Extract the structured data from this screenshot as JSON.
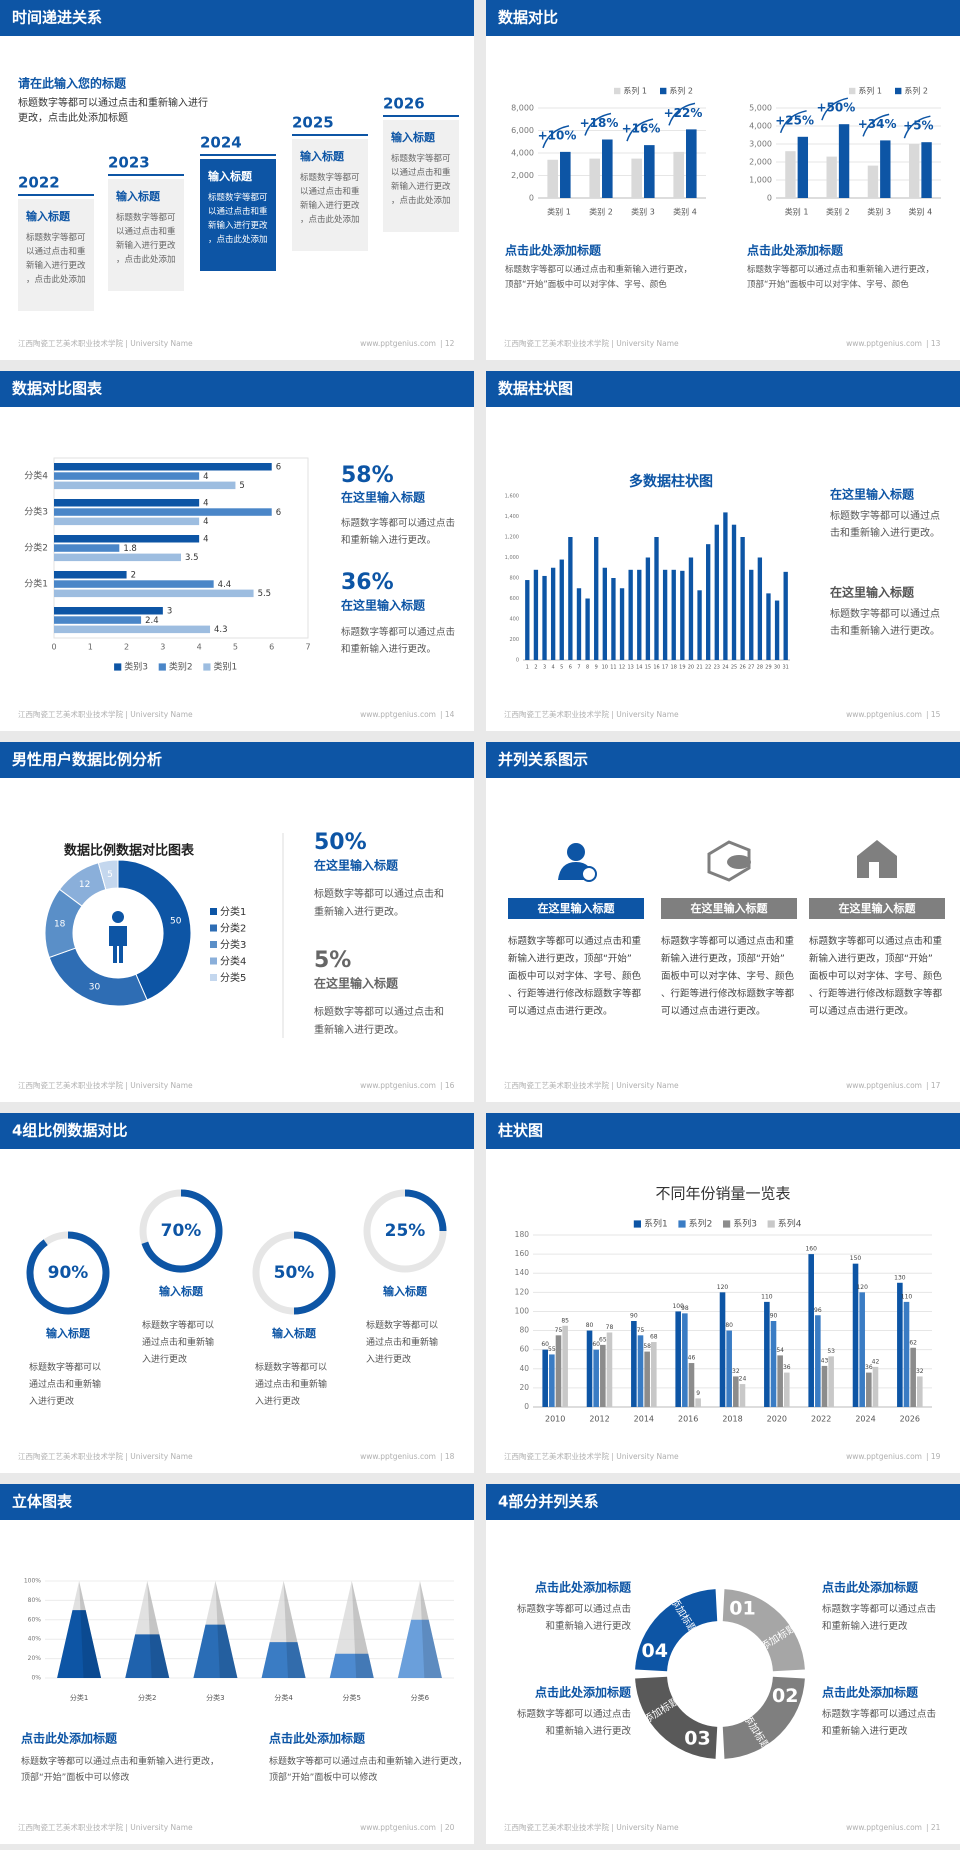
{
  "footer": {
    "school": "江西陶瓷工艺美术职业技术学院 | University Name",
    "site": "www.pptgenius.com"
  },
  "slides": [
    {
      "title": "时间递进关系",
      "page": "| 12",
      "heading": "请在此输入您的标题",
      "intro": "标题数字等都可以通过点击和重新输入进行更改，点击此处添加标题",
      "steps": [
        {
          "year": "2022",
          "title": "输入标题",
          "text": "标题数字等都可以通过点击和重新输入进行更改，点击此处添加",
          "fill": "#f0f0f0"
        },
        {
          "year": "2023",
          "title": "输入标题",
          "text": "标题数字等都可以通过点击和重新输入进行更改，点击此处添加",
          "fill": "#f0f0f0"
        },
        {
          "year": "2024",
          "title": "输入标题",
          "text": "标题数字等都可以通过点击和重新输入进行更改，点击此处添加",
          "fill": "#0d55a5"
        },
        {
          "year": "2025",
          "title": "输入标题",
          "text": "标题数字等都可以通过点击和重新输入进行更改，点击此处添加",
          "fill": "#f0f0f0"
        },
        {
          "year": "2026",
          "title": "输入标题",
          "text": "标题数字等都可以通过点击和重新输入进行更改，点击此处添加",
          "fill": "#f0f0f0"
        }
      ]
    },
    {
      "title": "数据对比",
      "page": "| 13",
      "charts": [
        {
          "type": "bar",
          "categories": [
            "类别 1",
            "类别 2",
            "类别 3",
            "类别 4"
          ],
          "series": [
            {
              "name": "系列 1",
              "color": "#d9d9d9",
              "values": [
                3400,
                3500,
                3500,
                4100
              ]
            },
            {
              "name": "系列 2",
              "color": "#0d55a5",
              "values": [
                4100,
                5200,
                4700,
                6100
              ]
            }
          ],
          "ylim": [
            0,
            8000
          ],
          "yticks": [
            0,
            {
              "value": 2000,
              "label": "2,000"
            },
            {
              "value": 4000,
              "label": "4,000"
            },
            {
              "value": 6000,
              "label": "6,000"
            },
            {
              "value": 8000,
              "label": "8,000"
            }
          ],
          "grid": true,
          "annotations": [
            "+10%",
            "+18%",
            "+16%",
            "+22%"
          ]
        },
        {
          "type": "bar",
          "categories": [
            "类别 1",
            "类别 2",
            "类别 3",
            "类别 4"
          ],
          "series": [
            {
              "name": "系列 1",
              "color": "#d9d9d9",
              "values": [
                2600,
                2300,
                1800,
                3000
              ]
            },
            {
              "name": "系列 2",
              "color": "#0d55a5",
              "values": [
                3400,
                4100,
                3200,
                3100
              ]
            }
          ],
          "ylim": [
            0,
            5000
          ],
          "yticks": [
            0,
            {
              "value": 1000,
              "label": "1,000"
            },
            {
              "value": 2000,
              "label": "2,000"
            },
            {
              "value": 3000,
              "label": "3,000"
            },
            {
              "value": 4000,
              "label": "4,000"
            },
            {
              "value": 5000,
              "label": "5,000"
            }
          ],
          "grid": true,
          "annotations": [
            "+25%",
            "+50%",
            "+34%",
            "+5%"
          ]
        }
      ],
      "blocks": [
        {
          "title": "点击此处添加标题",
          "text": "标题数字等都可以通过点击和重新输入进行更改，顶部“开始”面板中可以对字体、字号、颜色"
        },
        {
          "title": "点击此处添加标题",
          "text": "标题数字等都可以通过点击和重新输入进行更改，顶部“开始”面板中可以对字体、字号、颜色"
        }
      ]
    },
    {
      "title": "数据对比图表",
      "page": "| 14",
      "chart": {
        "type": "hbar",
        "categories": [
          null,
          "分类1",
          "分类2",
          "分类3",
          "分类4"
        ],
        "series": [
          {
            "name": "类别3",
            "color": "#0d55a5",
            "values": [
              3,
              2,
              4,
              4,
              6
            ]
          },
          {
            "name": "类别2",
            "color": "#4a86c8",
            "values": [
              2.4,
              4.4,
              1.8,
              6,
              4
            ]
          },
          {
            "name": "类别1",
            "color": "#9dbde0",
            "values": [
              4.3,
              5.5,
              3.5,
              4,
              5
            ]
          }
        ],
        "xlim": [
          0,
          7
        ],
        "xticks": [
          0,
          1,
          2,
          3,
          4,
          5,
          6,
          7
        ]
      },
      "stats": [
        {
          "value": "58%",
          "title": "在这里输入标题",
          "text": "标题数字等都可以通过点击和重新输入进行更改。"
        },
        {
          "value": "36%",
          "title": "在这里输入标题",
          "text": "标题数字等都可以通过点击和重新输入进行更改。"
        }
      ]
    },
    {
      "title": "数据柱状图",
      "page": "| 15",
      "chart": {
        "type": "bar",
        "title": "多数据柱状图",
        "categories": [
          "1",
          "2",
          "3",
          "4",
          "5",
          "6",
          "7",
          "8",
          "9",
          "10",
          "11",
          "12",
          "13",
          "14",
          "15",
          "16",
          "17",
          "18",
          "19",
          "20",
          "21",
          "22",
          "23",
          "24",
          "25",
          "26",
          "27",
          "28",
          "29",
          "30",
          "31"
        ],
        "values": [
          780,
          880,
          820,
          900,
          980,
          1200,
          700,
          600,
          1200,
          900,
          800,
          700,
          880,
          880,
          1000,
          1200,
          880,
          880,
          870,
          1000,
          680,
          1130,
          1320,
          1440,
          1320,
          1200,
          880,
          1000,
          650,
          580,
          860
        ],
        "color": "#0d55a5",
        "ylim": [
          0,
          1600
        ],
        "yticks": [
          0,
          200,
          400,
          600,
          800,
          {
            "value": 1000,
            "label": "1,000"
          },
          {
            "value": 1200,
            "label": "1,200"
          },
          {
            "value": 1400,
            "label": "1,400"
          },
          {
            "value": 1600,
            "label": "1,600"
          }
        ],
        "grid": false
      },
      "notes": [
        {
          "title": "在这里输入标题",
          "text": "标题数字等都可以通过点击和重新输入进行更改。"
        },
        {
          "title": "在这里输入标题",
          "text": "标题数字等都可以通过点击和重新输入进行更改。"
        }
      ]
    },
    {
      "title": "男性用户数据比例分析",
      "page": "| 16",
      "chart": {
        "type": "donut",
        "title": "数据比例数据对比图表",
        "categories": [
          "分类1",
          "分类2",
          "分类3",
          "分类4",
          "分类5"
        ],
        "values": [
          50,
          30,
          18,
          12,
          5
        ],
        "colors": [
          "#0d55a5",
          "#2e6db4",
          "#5a8fc8",
          "#8aafda",
          "#c4d7ee"
        ]
      },
      "stats": [
        {
          "value": "50%",
          "title": "在这里输入标题",
          "text": "标题数字等都可以通过点击和重新输入进行更改。"
        },
        {
          "value": "5%",
          "title": "在这里输入标题",
          "text": "标题数字等都可以通过点击和重新输入进行更改。"
        }
      ]
    },
    {
      "title": "并列关系图示",
      "page": "| 17",
      "columns": [
        {
          "label": "在这里输入标题",
          "color": "#0d55a5",
          "text": "标题数字等都可以通过点击和重新输入进行更改，顶部“开始”面板中可以对字体、字号、颜色、行距等进行修改标题数字等都可以通过点击进行更改。"
        },
        {
          "label": "在这里输入标题",
          "color": "#7f7f7f",
          "text": "标题数字等都可以通过点击和重新输入进行更改，顶部“开始”面板中可以对字体、字号、颜色、行距等进行修改标题数字等都可以通过点击进行更改。"
        },
        {
          "label": "在这里输入标题",
          "color": "#7f7f7f",
          "text": "标题数字等都可以通过点击和重新输入进行更改，顶部“开始”面板中可以对字体、字号、颜色、行距等进行修改标题数字等都可以通过点击进行更改。"
        }
      ]
    },
    {
      "title": "4组比例数据对比",
      "page": "| 18",
      "chart": {
        "type": "ring",
        "values": [
          90,
          70,
          50,
          25
        ],
        "value_labels": [
          "90%",
          "70%",
          "50%",
          "25%"
        ],
        "color": "#0d55a5",
        "track": "#e6e6e6",
        "ylim": [
          0,
          100
        ]
      },
      "items": [
        {
          "title": "输入标题",
          "text": "标题数字等都可以通过点击和重新输入进行更改"
        },
        {
          "title": "输入标题",
          "text": "标题数字等都可以通过点击和重新输入进行更改"
        },
        {
          "title": "输入标题",
          "text": "标题数字等都可以通过点击和重新输入进行更改"
        },
        {
          "title": "输入标题",
          "text": "标题数字等都可以通过点击和重新输入进行更改"
        }
      ]
    },
    {
      "title": "柱状图",
      "page": "| 19",
      "chart": {
        "type": "bar",
        "title": "不同年份销量一览表",
        "categories": [
          "2010",
          "2012",
          "2014",
          "2016",
          "2018",
          "2020",
          "2022",
          "2024",
          "2026"
        ],
        "series": [
          {
            "name": "系列1",
            "color": "#0d55a5",
            "values": [
              60,
              80,
              90,
              100,
              120,
              110,
              160,
              150,
              130
            ]
          },
          {
            "name": "系列2",
            "color": "#3a7cc4",
            "values": [
              55,
              60,
              75,
              98,
              80,
              90,
              96,
              120,
              110
            ]
          },
          {
            "name": "系列3",
            "color": "#8c8c8c",
            "values": [
              75,
              65,
              58,
              46,
              32,
              54,
              43,
              36,
              62
            ]
          },
          {
            "name": "系列4",
            "color": "#c8c8c8",
            "values": [
              85,
              78,
              68,
              9,
              24,
              36,
              53,
              42,
              32
            ]
          }
        ],
        "ylim": [
          0,
          180
        ],
        "yticks": [
          0,
          20,
          40,
          60,
          80,
          100,
          120,
          140,
          160,
          180
        ],
        "grid": true,
        "data_labels": true
      }
    },
    {
      "title": "立体图表",
      "page": "| 20",
      "chart": {
        "type": "pyramid",
        "categories": [
          "分类1",
          "分类2",
          "分类3",
          "分类4",
          "分类5",
          "分类6"
        ],
        "values": [
          70,
          45,
          55,
          37,
          25,
          60
        ],
        "colors": [
          "#0d55a5",
          "#1f62ad",
          "#2a6db6",
          "#3a7cc4",
          "#4d8ad0",
          "#6a9fdb"
        ],
        "track": "#d4d4d4",
        "ylim": [
          0,
          100
        ],
        "yticks": [
          {
            "value": 0,
            "label": "0%"
          },
          {
            "value": 20,
            "label": "20%"
          },
          {
            "value": 40,
            "label": "40%"
          },
          {
            "value": 60,
            "label": "60%"
          },
          {
            "value": 80,
            "label": "80%"
          },
          {
            "value": 100,
            "label": "100%"
          }
        ]
      },
      "blocks": [
        {
          "title": "点击此处添加标题",
          "text": "标题数字等都可以通过点击和重新输入进行更改，顶部“开始”面板中可以修改"
        },
        {
          "title": "点击此处添加标题",
          "text": "标题数字等都可以通过点击和重新输入进行更改，顶部“开始”面板中可以修改"
        }
      ]
    },
    {
      "title": "4部分并列关系",
      "page": "| 21",
      "segments": [
        {
          "number": "01",
          "label": "添加标题",
          "color": "#a6a6a6"
        },
        {
          "number": "02",
          "label": "添加标题",
          "color": "#7f7f7f"
        },
        {
          "number": "03",
          "label": "添加标题",
          "color": "#595959"
        },
        {
          "number": "04",
          "label": "添加标题",
          "color": "#0d55a5"
        }
      ],
      "items": [
        {
          "title": "点击此处添加标题",
          "text": "标题数字等都可以通过点击和重新输入进行更改"
        },
        {
          "title": "点击此处添加标题",
          "text": "标题数字等都可以通过点击和重新输入进行更改"
        },
        {
          "title": "点击此处添加标题",
          "text": "标题数字等都可以通过点击和重新输入进行更改"
        },
        {
          "title": "点击此处添加标题",
          "text": "标题数字等都可以通过点击和重新输入进行更改"
        }
      ]
    }
  ]
}
